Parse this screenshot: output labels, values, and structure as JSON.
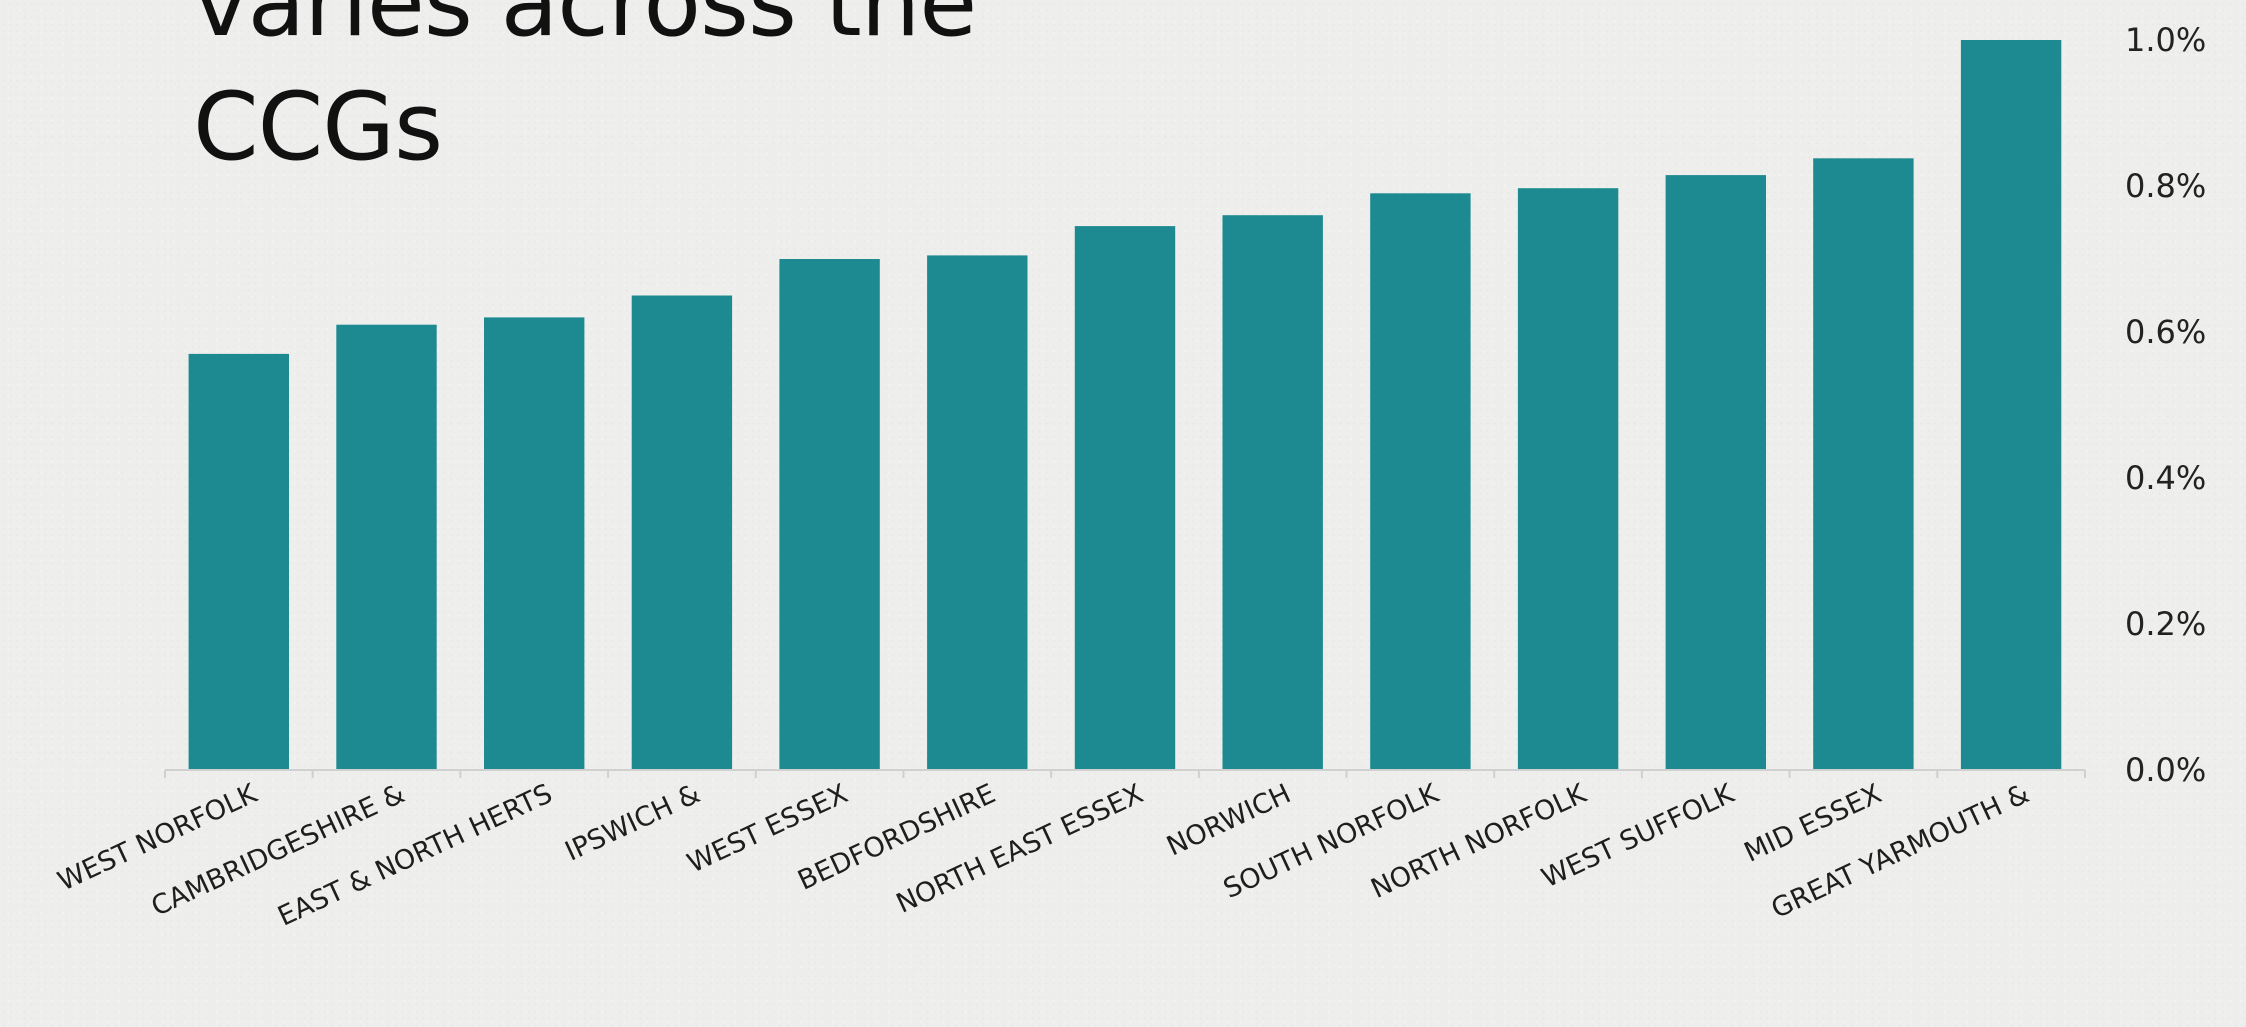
{
  "slide": {
    "title_line1": "varies across the",
    "title_line2": "CCGs"
  },
  "colors": {
    "bar": "#1d8a91",
    "axis": "#d0d0d0",
    "background": "#eeeeec"
  },
  "chart_data": {
    "type": "bar",
    "title": "",
    "xlabel": "",
    "ylabel": "",
    "categories": [
      "WEST NORFOLK",
      "CAMBRIDGESHIRE &",
      "EAST & NORTH HERTS",
      "IPSWICH &",
      "WEST ESSEX",
      "BEDFORDSHIRE",
      "NORTH EAST ESSEX",
      "NORWICH",
      "SOUTH NORFOLK",
      "NORTH NORFOLK",
      "WEST SUFFOLK",
      "MID ESSEX",
      "GREAT YARMOUTH &"
    ],
    "values": [
      0.57,
      0.61,
      0.62,
      0.65,
      0.7,
      0.705,
      0.745,
      0.76,
      0.79,
      0.797,
      0.815,
      0.838,
      1.0
    ],
    "unit": "%",
    "ylim": [
      0,
      1.0
    ],
    "yticks": [
      "0.0%",
      "0.2%",
      "0.4%",
      "0.6%",
      "0.8%",
      "1.0%"
    ],
    "y_axis_side": "right",
    "grid": false,
    "legend": "none"
  }
}
